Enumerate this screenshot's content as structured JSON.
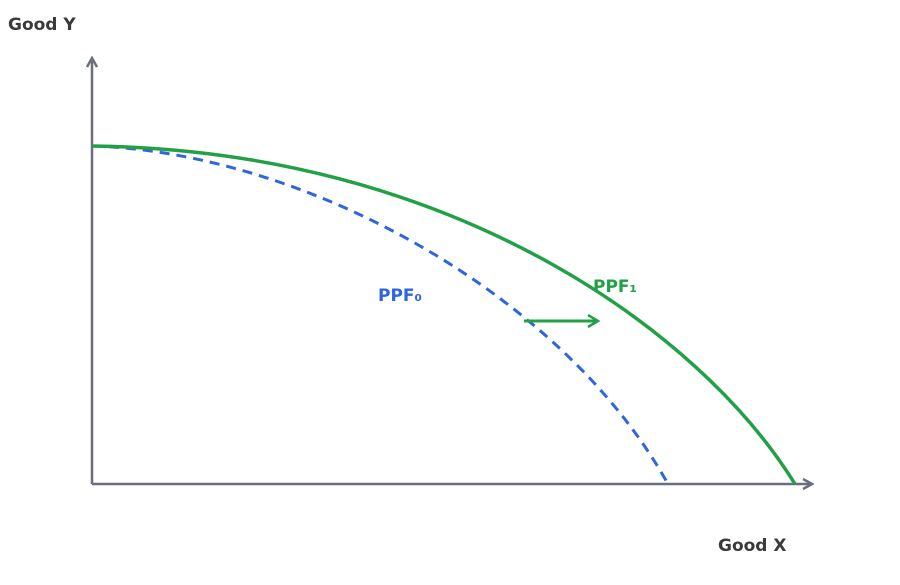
{
  "y_axis_label": "Good Y",
  "x_axis_label": "Good X",
  "curves": [
    {
      "label": "PPF₀"
    },
    {
      "label": "PPF₁"
    }
  ]
}
